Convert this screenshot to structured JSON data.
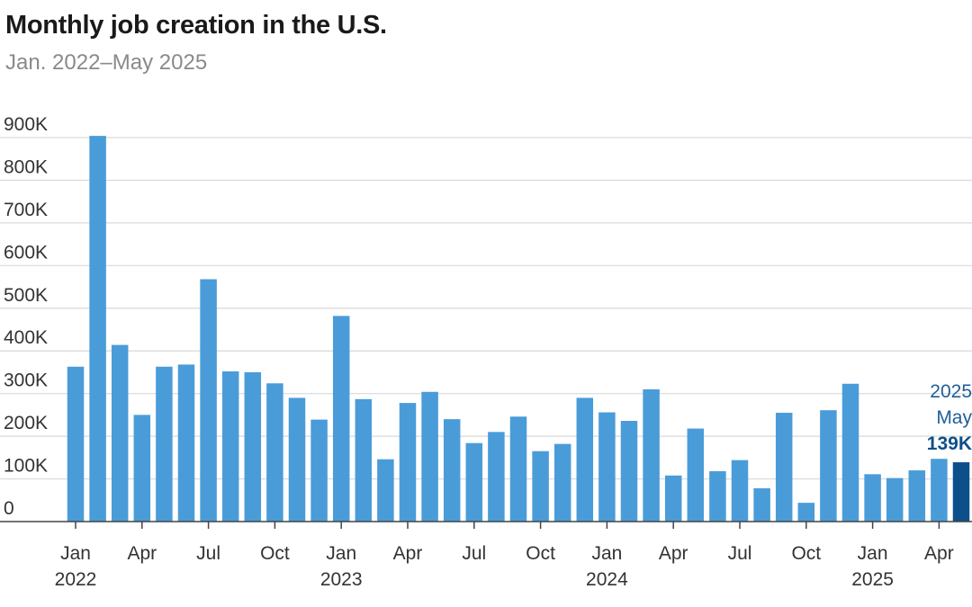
{
  "header": {
    "title": "Monthly job creation in the U.S.",
    "subtitle": "Jan. 2022–May 2025"
  },
  "colors": {
    "bar": "#4a9cd9",
    "highlight": "#0d4f8b",
    "grid": "#d9d9d9"
  },
  "annotation": {
    "year": "2025",
    "month": "May",
    "value": "139K"
  },
  "chart_data": {
    "type": "bar",
    "title": "Monthly job creation in the U.S.",
    "subtitle": "Jan. 2022–May 2025",
    "ylim": [
      0,
      900000
    ],
    "yticks": [
      0,
      100000,
      200000,
      300000,
      400000,
      500000,
      600000,
      700000,
      800000,
      900000
    ],
    "ytick_labels": [
      "0",
      "100K",
      "200K",
      "300K",
      "400K",
      "500K",
      "600K",
      "700K",
      "800K",
      "900K"
    ],
    "grid": true,
    "categories": [
      "2022-01",
      "2022-02",
      "2022-03",
      "2022-04",
      "2022-05",
      "2022-06",
      "2022-07",
      "2022-08",
      "2022-09",
      "2022-10",
      "2022-11",
      "2022-12",
      "2023-01",
      "2023-02",
      "2023-03",
      "2023-04",
      "2023-05",
      "2023-06",
      "2023-07",
      "2023-08",
      "2023-09",
      "2023-10",
      "2023-11",
      "2023-12",
      "2024-01",
      "2024-02",
      "2024-03",
      "2024-04",
      "2024-05",
      "2024-06",
      "2024-07",
      "2024-08",
      "2024-09",
      "2024-10",
      "2024-11",
      "2024-12",
      "2025-01",
      "2025-02",
      "2025-03",
      "2025-04",
      "2025-05"
    ],
    "values": [
      363000,
      904000,
      414000,
      250000,
      363000,
      368000,
      568000,
      352000,
      350000,
      324000,
      290000,
      239000,
      482000,
      287000,
      146000,
      278000,
      304000,
      240000,
      184000,
      210000,
      246000,
      165000,
      182000,
      290000,
      256000,
      236000,
      310000,
      108000,
      218000,
      118000,
      144000,
      78000,
      255000,
      44000,
      261000,
      323000,
      111000,
      102000,
      120000,
      147000,
      139000
    ],
    "highlight_index": 40,
    "x_tick_labels": [
      {
        "index": 0,
        "month": "Jan",
        "year": "2022"
      },
      {
        "index": 3,
        "month": "Apr",
        "year": ""
      },
      {
        "index": 6,
        "month": "Jul",
        "year": ""
      },
      {
        "index": 9,
        "month": "Oct",
        "year": ""
      },
      {
        "index": 12,
        "month": "Jan",
        "year": "2023"
      },
      {
        "index": 15,
        "month": "Apr",
        "year": ""
      },
      {
        "index": 18,
        "month": "Jul",
        "year": ""
      },
      {
        "index": 21,
        "month": "Oct",
        "year": ""
      },
      {
        "index": 24,
        "month": "Jan",
        "year": "2024"
      },
      {
        "index": 27,
        "month": "Apr",
        "year": ""
      },
      {
        "index": 30,
        "month": "Jul",
        "year": ""
      },
      {
        "index": 33,
        "month": "Oct",
        "year": ""
      },
      {
        "index": 36,
        "month": "Jan",
        "year": "2025"
      },
      {
        "index": 39,
        "month": "Apr",
        "year": ""
      }
    ]
  }
}
